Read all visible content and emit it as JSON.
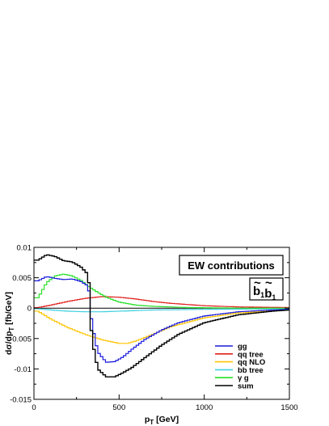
{
  "chart_data": {
    "type": "line",
    "title_box": "EW contributions",
    "process_label": "b̃₁b̃₁",
    "xlabel": "p_T [GeV]",
    "ylabel": "dσ/dp_T [fb/GeV]",
    "xlim": [
      0,
      1500
    ],
    "ylim": [
      -0.015,
      0.01
    ],
    "xticks": [
      0,
      500,
      1000,
      1500
    ],
    "xtick_labels": [
      "0",
      "500",
      "1000",
      "1500"
    ],
    "yticks": [
      -0.015,
      -0.01,
      -0.005,
      0,
      0.005,
      0.01
    ],
    "ytick_labels": [
      "-0.015",
      "-0.01",
      "-0.005",
      "0",
      "0.005",
      "0.01"
    ],
    "grid": false,
    "legend_position": "bottom-right",
    "series": [
      {
        "name": "gg",
        "color": "#1a1adc",
        "x": [
          25,
          75,
          125,
          175,
          225,
          275,
          320,
          340,
          375,
          425,
          475,
          525,
          575,
          650,
          750,
          850,
          1000,
          1200,
          1400,
          1500
        ],
        "y": [
          0.0045,
          0.0052,
          0.0049,
          0.0047,
          0.0048,
          0.0044,
          0.0036,
          -0.0025,
          -0.0072,
          -0.0089,
          -0.0088,
          -0.008,
          -0.0068,
          -0.0052,
          -0.0036,
          -0.0024,
          -0.0013,
          -0.0006,
          -0.0003,
          -0.0002
        ]
      },
      {
        "name": "qq tree",
        "color": "#e0201c",
        "x": [
          25,
          100,
          200,
          300,
          400,
          500,
          600,
          700,
          800,
          1000,
          1200,
          1500
        ],
        "y": [
          0.0001,
          0.0005,
          0.0011,
          0.0016,
          0.0019,
          0.0018,
          0.0015,
          0.0011,
          0.0008,
          0.0004,
          0.0002,
          0.0001
        ]
      },
      {
        "name": "qq NLO",
        "color": "#ffc400",
        "x": [
          25,
          100,
          200,
          300,
          400,
          500,
          550,
          600,
          700,
          800,
          1000,
          1200,
          1500
        ],
        "y": [
          -0.0005,
          -0.0018,
          -0.0032,
          -0.0043,
          -0.0052,
          -0.0058,
          -0.0058,
          -0.0054,
          -0.0043,
          -0.0031,
          -0.0016,
          -0.0008,
          -0.0003
        ]
      },
      {
        "name": "bb tree",
        "color": "#40d0e0",
        "x": [
          25,
          100,
          200,
          300,
          400,
          500,
          700,
          1000,
          1500
        ],
        "y": [
          -0.0001,
          -0.0003,
          -0.0005,
          -0.0006,
          -0.0006,
          -0.0005,
          -0.0003,
          -0.0002,
          -0.0001
        ]
      },
      {
        "name": "γ g",
        "color": "#28e028",
        "x": [
          25,
          75,
          125,
          175,
          225,
          275,
          325,
          375,
          425,
          500,
          600,
          700,
          900,
          1200,
          1500
        ],
        "y": [
          0.0017,
          0.0042,
          0.0053,
          0.0056,
          0.0053,
          0.0046,
          0.0035,
          0.0026,
          0.0018,
          0.001,
          0.0005,
          0.0003,
          0.0001,
          0.0,
          0.0
        ]
      },
      {
        "name": "sum",
        "color": "#000000",
        "x": [
          25,
          75,
          125,
          175,
          225,
          275,
          320,
          340,
          375,
          425,
          475,
          525,
          575,
          650,
          750,
          850,
          1000,
          1200,
          1400,
          1500
        ],
        "y": [
          0.0079,
          0.0088,
          0.0085,
          0.0078,
          0.0076,
          0.0068,
          0.0055,
          -0.005,
          -0.01,
          -0.0113,
          -0.0113,
          -0.0106,
          -0.0098,
          -0.0082,
          -0.0061,
          -0.0043,
          -0.0024,
          -0.0011,
          -0.0005,
          -0.0003
        ]
      }
    ]
  }
}
